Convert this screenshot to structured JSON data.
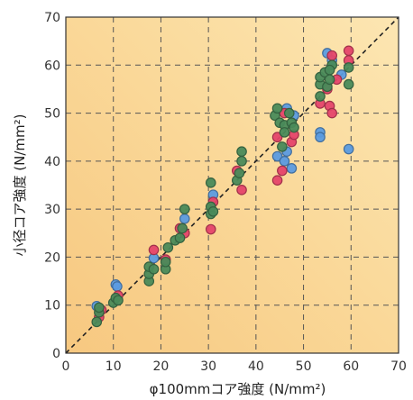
{
  "chart_data": {
    "type": "scatter",
    "title": "",
    "xlabel": "φ100mmコア強度 (N/mm²)",
    "ylabel": "小径コア強度 (N/mm²)",
    "xlim": [
      0,
      70
    ],
    "ylim": [
      0,
      70
    ],
    "x_ticks": [
      "0",
      "10",
      "20",
      "30",
      "40",
      "50",
      "60",
      "70"
    ],
    "y_ticks": [
      "0",
      "10",
      "20",
      "30",
      "40",
      "50",
      "60",
      "70"
    ],
    "grid": true,
    "reference_line": "y = x",
    "background": "#f9dc97",
    "series": [
      {
        "color": "#5b9be0",
        "points": [
          [
            6.5,
            9.8
          ],
          [
            10.5,
            14.3
          ],
          [
            10.8,
            13.9
          ],
          [
            18.5,
            19.8
          ],
          [
            25,
            28
          ],
          [
            31,
            33
          ],
          [
            44.5,
            41
          ],
          [
            46,
            40
          ],
          [
            46.5,
            42
          ],
          [
            47.5,
            38.5
          ],
          [
            48,
            49.5
          ],
          [
            46.5,
            51
          ],
          [
            53.5,
            46
          ],
          [
            53.5,
            45
          ],
          [
            55,
            62.5
          ],
          [
            56,
            61
          ],
          [
            59.5,
            42.5
          ],
          [
            58,
            58
          ]
        ]
      },
      {
        "color": "#e5456a",
        "points": [
          [
            7,
            7.5
          ],
          [
            7.5,
            9
          ],
          [
            11,
            12
          ],
          [
            18.5,
            21.5
          ],
          [
            21,
            19.5
          ],
          [
            24,
            26
          ],
          [
            25,
            25
          ],
          [
            30.5,
            25.8
          ],
          [
            31,
            31.5
          ],
          [
            37,
            34
          ],
          [
            36,
            38
          ],
          [
            44.5,
            36
          ],
          [
            45.5,
            38
          ],
          [
            44.5,
            45
          ],
          [
            47.5,
            44
          ],
          [
            48,
            45.5
          ],
          [
            46,
            50
          ],
          [
            53.5,
            52
          ],
          [
            55,
            55
          ],
          [
            55.5,
            51.5
          ],
          [
            56,
            50
          ],
          [
            56,
            62
          ],
          [
            59.5,
            61
          ],
          [
            59.5,
            63
          ],
          [
            57,
            57
          ]
        ]
      },
      {
        "color": "#4a8a5a",
        "points": [
          [
            6.5,
            6.5
          ],
          [
            7,
            8.5
          ],
          [
            7,
            9.5
          ],
          [
            10,
            10.5
          ],
          [
            10.5,
            11.5
          ],
          [
            11,
            11
          ],
          [
            17.5,
            15
          ],
          [
            17.5,
            16.5
          ],
          [
            17.5,
            18
          ],
          [
            18.5,
            17.5
          ],
          [
            21,
            17.5
          ],
          [
            21,
            19
          ],
          [
            21.5,
            22
          ],
          [
            23,
            23.5
          ],
          [
            24,
            24
          ],
          [
            24.5,
            26
          ],
          [
            25,
            30
          ],
          [
            30.5,
            29
          ],
          [
            30.5,
            30.5
          ],
          [
            31,
            29.5
          ],
          [
            30.5,
            35.5
          ],
          [
            36,
            36
          ],
          [
            36.5,
            37.5
          ],
          [
            37,
            40
          ],
          [
            37,
            42
          ],
          [
            44,
            49.5
          ],
          [
            44.5,
            51
          ],
          [
            45,
            48
          ],
          [
            45.5,
            43
          ],
          [
            46,
            47.5
          ],
          [
            46,
            46
          ],
          [
            47,
            50
          ],
          [
            47.5,
            48
          ],
          [
            48,
            47
          ],
          [
            53.5,
            53.5
          ],
          [
            53.5,
            56
          ],
          [
            53.5,
            57.5
          ],
          [
            54.5,
            58.5
          ],
          [
            55,
            55.5
          ],
          [
            55.5,
            57
          ],
          [
            56,
            60
          ],
          [
            59.5,
            56
          ],
          [
            59.5,
            59.5
          ],
          [
            55.5,
            59
          ]
        ]
      }
    ]
  }
}
